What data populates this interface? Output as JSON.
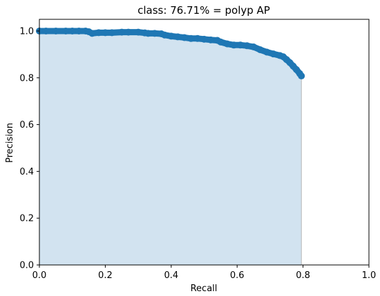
{
  "chart_data": {
    "type": "area",
    "title": "class: 76.71% = polyp AP",
    "xlabel": "Recall",
    "ylabel": "Precision",
    "xlim": [
      0,
      1
    ],
    "ylim": [
      0,
      1.05
    ],
    "xticks": [
      "0.0",
      "0.2",
      "0.4",
      "0.6",
      "0.8",
      "1.0"
    ],
    "yticks": [
      "0.0",
      "0.2",
      "0.4",
      "0.6",
      "0.8",
      "1.0"
    ],
    "grid": false,
    "colors": {
      "line": "#1f77b4",
      "fill": "#d2e3f0",
      "edge": "#b5b5b5"
    },
    "series": [
      {
        "x": [
          0.0,
          0.02,
          0.05,
          0.08,
          0.1,
          0.12,
          0.14,
          0.15,
          0.16,
          0.18,
          0.2,
          0.22,
          0.25,
          0.27,
          0.3,
          0.32,
          0.33,
          0.35,
          0.37,
          0.38,
          0.4,
          0.42,
          0.44,
          0.46,
          0.48,
          0.5,
          0.52,
          0.54,
          0.55,
          0.57,
          0.59,
          0.61,
          0.63,
          0.65,
          0.67,
          0.69,
          0.71,
          0.73,
          0.74,
          0.75,
          0.76,
          0.77,
          0.78,
          0.79,
          0.795
        ],
        "y": [
          1.0,
          1.0,
          1.0,
          1.0,
          1.0,
          1.0,
          1.0,
          0.997,
          0.99,
          0.993,
          0.993,
          0.993,
          0.995,
          0.995,
          0.995,
          0.992,
          0.99,
          0.99,
          0.988,
          0.983,
          0.978,
          0.975,
          0.972,
          0.968,
          0.968,
          0.965,
          0.962,
          0.96,
          0.953,
          0.945,
          0.94,
          0.94,
          0.937,
          0.932,
          0.92,
          0.91,
          0.902,
          0.895,
          0.89,
          0.878,
          0.865,
          0.85,
          0.835,
          0.818,
          0.808
        ]
      }
    ]
  }
}
